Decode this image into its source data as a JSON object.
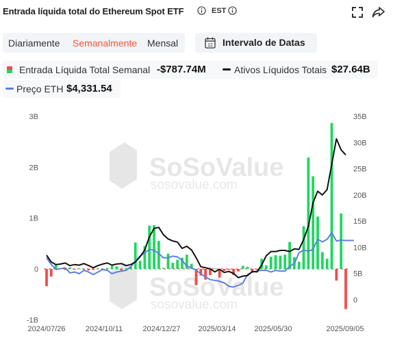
{
  "header": {
    "title": "Entrada líquida total do Ethereum Spot ETF",
    "timezone": "EST"
  },
  "tabs": [
    {
      "label": "Diariamente",
      "active": false
    },
    {
      "label": "Semanalmente",
      "active": true
    },
    {
      "label": "Mensal",
      "active": false
    }
  ],
  "date_range": {
    "label": "Intervalo de Datas",
    "icon_day": "12"
  },
  "legend": {
    "net_inflow": {
      "label": "Entrada Líquida Total Semanal",
      "value": "-$787.74M"
    },
    "net_assets": {
      "label": "Ativos Líquidos Totais",
      "value": "$27.64B"
    },
    "eth_price": {
      "label": "Preço ETH",
      "value": "$4,331.54"
    }
  },
  "colors": {
    "positive": "#1ed760",
    "negative": "#f24a4a",
    "assets_line": "#111111",
    "price_line": "#5b7fe0",
    "active_tab": "#f0583a",
    "zero_line": "#f24a4a"
  },
  "watermark": {
    "brand": "SoSoValue",
    "url": "sosovalue.com"
  },
  "chart_data": {
    "type": "bar",
    "title": "",
    "left_axis": {
      "ticks": [
        "3B",
        "2B",
        "1B",
        "0",
        "-1B"
      ],
      "range": [
        -1,
        3
      ],
      "unit": "B USD"
    },
    "right_axis": {
      "ticks": [
        "35B",
        "30B",
        "25B",
        "20B",
        "15B",
        "10B",
        "5B",
        "0"
      ],
      "range": [
        0,
        35
      ],
      "unit": "B USD"
    },
    "x_labels": [
      "2024/07/26",
      "2024/10/11",
      "2024/12/27",
      "2025/03/14",
      "2025/05/30",
      "2025/09/05"
    ],
    "series": [
      {
        "name": "Entrada Líquida Total Semanal",
        "kind": "bar",
        "axis": "left",
        "unit": "B USD",
        "values": [
          -0.34,
          -0.15,
          0.1,
          0.01,
          -0.02,
          0.03,
          -0.01,
          0.01,
          -0.01,
          -0.03,
          -0.02,
          0.01,
          -0.01,
          0.02,
          0.06,
          0.05,
          -0.03,
          0.01,
          0.05,
          0.52,
          0.16,
          0.45,
          0.85,
          0.86,
          0.55,
          0.02,
          0.3,
          0.12,
          0.18,
          0.22,
          0.28,
          0.1,
          -0.32,
          -0.13,
          -0.21,
          -0.12,
          0.01,
          -0.17,
          -0.04,
          -0.02,
          -0.12,
          -0.05,
          0.06,
          0.04,
          -0.08,
          -0.02,
          0.2,
          0.07,
          0.24,
          0.27,
          0.26,
          0.28,
          0.53,
          0.23,
          0.14,
          0.84,
          2.19,
          1.82,
          1.03,
          0.33,
          0.2,
          2.87,
          -0.23,
          1.09,
          -0.79
        ]
      },
      {
        "name": "Ativos Líquidos Totais",
        "kind": "line",
        "axis": "right",
        "unit": "B USD",
        "values": [
          8.5,
          7.2,
          6.7,
          6.8,
          7.0,
          6.5,
          6.7,
          6.6,
          6.9,
          6.5,
          6.1,
          6.5,
          6.8,
          7.0,
          6.6,
          6.8,
          6.9,
          6.5,
          6.7,
          7.2,
          8.2,
          9.5,
          12.0,
          13.6,
          13.8,
          12.4,
          11.6,
          11.2,
          11.0,
          9.8,
          10.2,
          9.5,
          8.0,
          6.3,
          6.1,
          5.9,
          5.3,
          5.8,
          5.2,
          5.4,
          5.0,
          4.2,
          4.5,
          4.6,
          5.4,
          5.3,
          6.6,
          8.4,
          9.2,
          9.2,
          9.4,
          9.4,
          9.2,
          9.7,
          9.6,
          11.5,
          14.0,
          18.5,
          20.7,
          20.0,
          21.0,
          25.8,
          30.7,
          28.6,
          27.64
        ]
      },
      {
        "name": "Preço ETH",
        "kind": "line",
        "axis": "right",
        "unit": "USD",
        "values": [
          3300,
          2900,
          2600,
          2650,
          2700,
          2400,
          2450,
          2350,
          2550,
          2450,
          2300,
          2450,
          2600,
          2550,
          2350,
          2450,
          2500,
          2550,
          2750,
          3100,
          3400,
          3600,
          3800,
          3750,
          3550,
          3300,
          3300,
          3400,
          3350,
          3150,
          2800,
          2700,
          2550,
          2350,
          2150,
          2000,
          1950,
          1900,
          1800,
          1600,
          1550,
          1650,
          1800,
          2300,
          2450,
          2500,
          2550,
          2550,
          2450,
          2550,
          2500,
          2500,
          2800,
          2950,
          3600,
          3750,
          3700,
          3800,
          4400,
          4250,
          4400,
          4800,
          4300,
          4350,
          4331.54
        ]
      }
    ]
  }
}
